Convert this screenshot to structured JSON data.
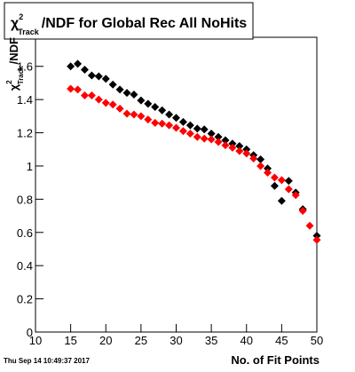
{
  "chart_data": {
    "type": "scatter",
    "title": {
      "symbol": "χ",
      "sup": "2",
      "sub": "Track",
      "text": "/NDF for Global Rec All NoHits"
    },
    "y_label": {
      "symbol": "χ",
      "sup": "2",
      "sub": "Track",
      "text": "/NDF"
    },
    "x_label": "No. of Fit Points",
    "timestamp": "Thu Sep 14 10:49:37 2017",
    "x": [
      15,
      16,
      17,
      18,
      19,
      20,
      21,
      22,
      23,
      24,
      25,
      26,
      27,
      28,
      29,
      30,
      31,
      32,
      33,
      34,
      35,
      36,
      37,
      38,
      39,
      40,
      41,
      42,
      43,
      44,
      45,
      46,
      47,
      48,
      49,
      50
    ],
    "series": [
      {
        "color": "#000000",
        "values": [
          1.6,
          1.615,
          1.58,
          1.545,
          1.54,
          1.525,
          1.49,
          1.46,
          1.44,
          1.43,
          1.395,
          1.375,
          1.355,
          1.335,
          1.31,
          1.29,
          1.265,
          1.245,
          1.225,
          1.22,
          1.195,
          1.175,
          1.155,
          1.135,
          1.12,
          1.1,
          1.065,
          1.04,
          0.985,
          0.88,
          0.79,
          0.91,
          0.84,
          0.74,
          null,
          0.58
        ]
      },
      {
        "color": "#ff0000",
        "values": [
          1.465,
          1.46,
          1.425,
          1.425,
          1.4,
          1.38,
          1.37,
          1.345,
          1.315,
          1.31,
          1.3,
          1.28,
          1.26,
          1.255,
          1.245,
          1.23,
          1.21,
          1.195,
          1.175,
          1.165,
          1.16,
          1.145,
          1.125,
          1.11,
          1.09,
          1.075,
          1.045,
          1.0,
          0.96,
          0.93,
          0.915,
          0.86,
          0.825,
          0.73,
          0.64,
          0.555
        ]
      }
    ],
    "xlim": [
      10,
      50
    ],
    "ylim": [
      0,
      1.775
    ],
    "xticks": [
      10,
      15,
      20,
      25,
      30,
      35,
      40,
      45,
      50
    ],
    "yticks": [
      0,
      0.2,
      0.4,
      0.6,
      0.8,
      1,
      1.2,
      1.4,
      1.6
    ]
  }
}
